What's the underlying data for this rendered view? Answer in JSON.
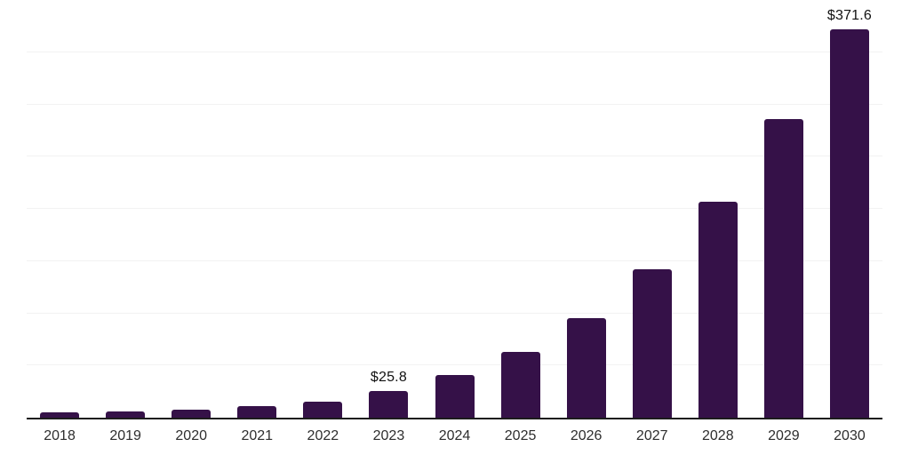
{
  "chart_data": {
    "type": "bar",
    "title": "",
    "xlabel": "",
    "ylabel": "",
    "categories": [
      "2018",
      "2019",
      "2020",
      "2021",
      "2022",
      "2023",
      "2024",
      "2025",
      "2026",
      "2027",
      "2028",
      "2029",
      "2030"
    ],
    "values": [
      5.1,
      6.3,
      7.7,
      10.8,
      15.7,
      25.8,
      40.5,
      63.0,
      95.0,
      142.3,
      206.5,
      285.7,
      371.6
    ],
    "value_labels": [
      "",
      "",
      "",
      "",
      "",
      "$25.8",
      "",
      "",
      "",
      "",
      "",
      "",
      "$371.6"
    ],
    "ylim": [
      0,
      400
    ],
    "gridline_step": 50,
    "grid": "horizontal",
    "legend_position": "none",
    "currency_prefix": "$",
    "colors": {
      "bar": "#351148",
      "background": "#FFFFFF",
      "gridline": "#F2F2F2",
      "axis_line": "#1C1C1C",
      "tick_label": "#2E2E2E",
      "value_label": "#111111"
    }
  }
}
